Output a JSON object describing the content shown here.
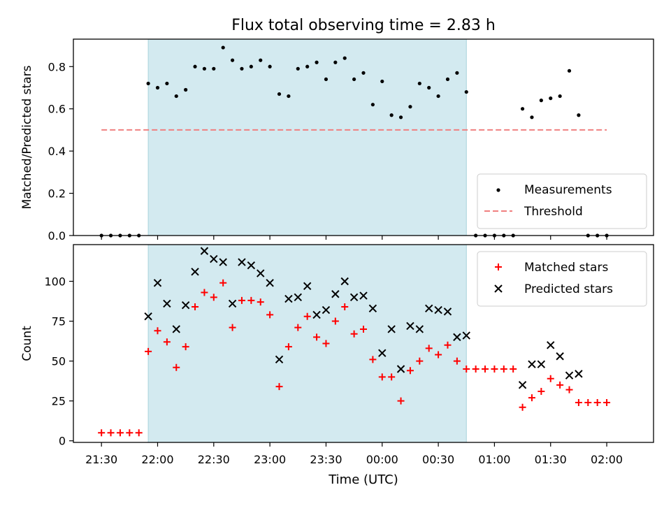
{
  "figure": {
    "title": "Flux total observing time = 2.83 h",
    "xlabel": "Time (UTC)",
    "x_ticks": [
      "21:30",
      "22:00",
      "22:30",
      "23:00",
      "23:30",
      "00:00",
      "00:30",
      "01:00",
      "01:30",
      "02:00"
    ]
  },
  "chart_data": [
    {
      "type": "scatter",
      "ylabel": "Matched/Predicted stars",
      "ylim": [
        0,
        0.93
      ],
      "y_ticks": [
        "0.0",
        "0.2",
        "0.4",
        "0.6",
        "0.8"
      ],
      "x_unit": "minutes after 21:30 UTC",
      "xlim": [
        -15,
        295
      ],
      "observing_window": [
        25,
        195
      ],
      "shade_color": "#d3eaf0",
      "threshold": {
        "name": "Threshold",
        "value": 0.5,
        "x_range": [
          0,
          270
        ],
        "color": "#f08080"
      },
      "legend": {
        "position": "lower right",
        "entries": [
          "Measurements",
          "Threshold"
        ]
      },
      "series": [
        {
          "name": "Measurements",
          "color": "#000000",
          "x": [
            0,
            5,
            10,
            15,
            20,
            25,
            30,
            35,
            40,
            45,
            50,
            55,
            60,
            65,
            70,
            75,
            80,
            85,
            90,
            95,
            100,
            105,
            110,
            115,
            120,
            125,
            130,
            135,
            140,
            145,
            150,
            155,
            160,
            165,
            170,
            175,
            180,
            185,
            190,
            195,
            200,
            205,
            210,
            215,
            220,
            225,
            230,
            235,
            240,
            245,
            250,
            255,
            260,
            265,
            270
          ],
          "y": [
            0,
            0,
            0,
            0,
            0,
            0.72,
            0.7,
            0.72,
            0.66,
            0.69,
            0.8,
            0.79,
            0.79,
            0.89,
            0.83,
            0.79,
            0.8,
            0.83,
            0.8,
            0.67,
            0.66,
            0.79,
            0.8,
            0.82,
            0.74,
            0.82,
            0.84,
            0.74,
            0.77,
            0.62,
            0.73,
            0.57,
            0.56,
            0.61,
            0.72,
            0.7,
            0.66,
            0.74,
            0.77,
            0.68,
            0,
            0,
            0,
            0,
            0,
            0.6,
            0.56,
            0.64,
            0.65,
            0.66,
            0.78,
            0.57,
            0,
            0,
            0
          ]
        }
      ]
    },
    {
      "type": "scatter",
      "ylabel": "Count",
      "ylim": [
        -1,
        123
      ],
      "y_ticks": [
        "0",
        "25",
        "50",
        "75",
        "100"
      ],
      "x_unit": "minutes after 21:30 UTC",
      "xlim": [
        -15,
        295
      ],
      "observing_window": [
        25,
        195
      ],
      "legend": {
        "position": "upper right",
        "entries": [
          "Matched stars",
          "Predicted stars"
        ]
      },
      "series": [
        {
          "name": "Matched stars",
          "marker": "+",
          "color": "#ff0000",
          "x": [
            0,
            5,
            10,
            15,
            20,
            25,
            30,
            35,
            40,
            45,
            50,
            55,
            60,
            65,
            70,
            75,
            80,
            85,
            90,
            95,
            100,
            105,
            110,
            115,
            120,
            125,
            130,
            135,
            140,
            145,
            150,
            155,
            160,
            165,
            170,
            175,
            180,
            185,
            190,
            195,
            200,
            205,
            210,
            215,
            220,
            225,
            230,
            235,
            240,
            245,
            250,
            255,
            260,
            265,
            270
          ],
          "y": [
            5,
            5,
            5,
            5,
            5,
            56,
            69,
            62,
            46,
            59,
            84,
            93,
            90,
            99,
            71,
            88,
            88,
            87,
            79,
            34,
            59,
            71,
            78,
            65,
            61,
            75,
            84,
            67,
            70,
            51,
            40,
            40,
            25,
            44,
            50,
            58,
            54,
            60,
            50,
            45,
            45,
            45,
            45,
            45,
            45,
            21,
            27,
            31,
            39,
            35,
            32,
            24,
            24,
            24,
            24
          ]
        },
        {
          "name": "Predicted stars",
          "marker": "x",
          "color": "#000000",
          "x": [
            25,
            30,
            35,
            40,
            45,
            50,
            55,
            60,
            65,
            70,
            75,
            80,
            85,
            90,
            95,
            100,
            105,
            110,
            115,
            120,
            125,
            130,
            135,
            140,
            145,
            150,
            155,
            160,
            165,
            170,
            175,
            180,
            185,
            190,
            195,
            225,
            230,
            235,
            240,
            245,
            250,
            255
          ],
          "y": [
            78,
            99,
            86,
            70,
            85,
            106,
            119,
            114,
            112,
            86,
            112,
            110,
            105,
            99,
            51,
            89,
            90,
            97,
            79,
            82,
            92,
            100,
            90,
            91,
            83,
            55,
            70,
            45,
            72,
            70,
            83,
            82,
            81,
            65,
            66,
            35,
            48,
            48,
            60,
            53,
            41,
            42
          ]
        }
      ]
    }
  ]
}
